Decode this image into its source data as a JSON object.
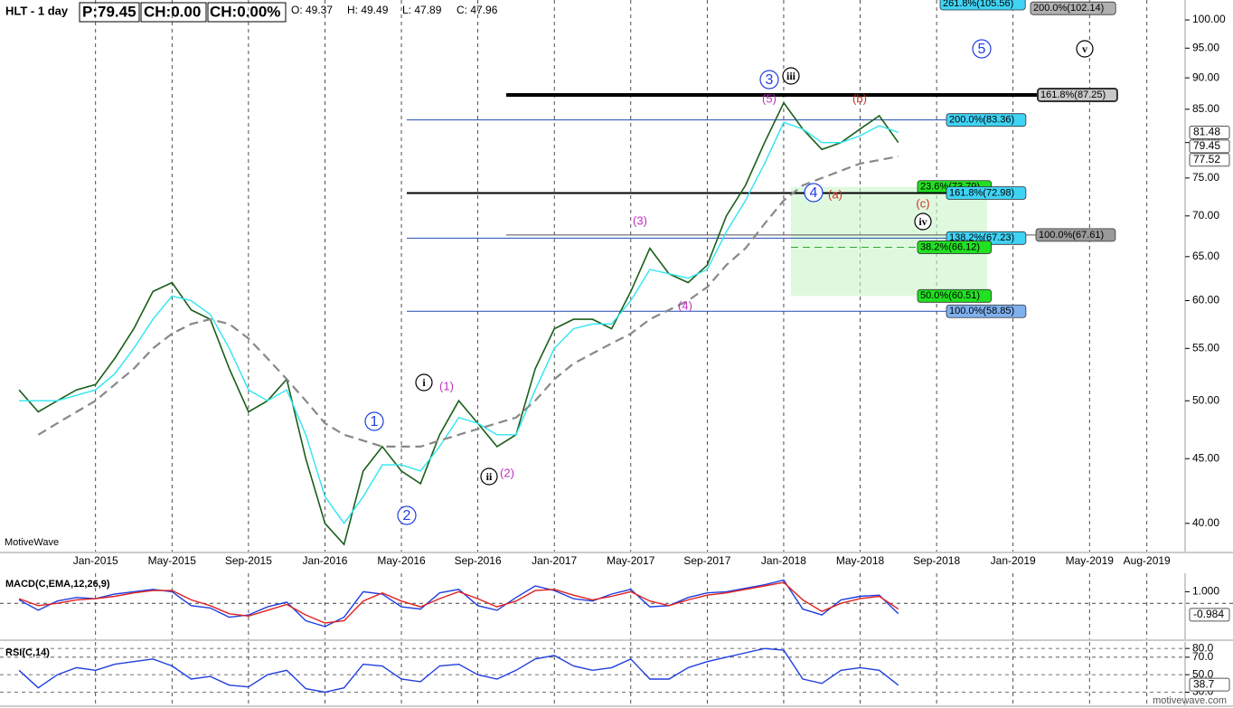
{
  "header": {
    "symbol": "HLT - 1 day",
    "price": "P:79.45",
    "change": "CH:0.00",
    "change_pct": "CH:0.00%",
    "open": "O: 49.37",
    "high": "H: 49.49",
    "low": "L: 47.89",
    "close": "C: 47.96"
  },
  "watermark": "MotiveWave",
  "footer": "motivewave.com",
  "chart_data": [
    {
      "type": "line",
      "log": true,
      "x": [
        "2014-09",
        "2014-10",
        "2014-11",
        "2014-12",
        "2015-01",
        "2015-02",
        "2015-03",
        "2015-04",
        "2015-05",
        "2015-06",
        "2015-07",
        "2015-08",
        "2015-09",
        "2015-10",
        "2015-11",
        "2015-12",
        "2016-01",
        "2016-02",
        "2016-03",
        "2016-04",
        "2016-05",
        "2016-06",
        "2016-07",
        "2016-08",
        "2016-09",
        "2016-10",
        "2016-11",
        "2016-12",
        "2017-01",
        "2017-02",
        "2017-03",
        "2017-04",
        "2017-05",
        "2017-06",
        "2017-07",
        "2017-08",
        "2017-09",
        "2017-10",
        "2017-11",
        "2017-12",
        "2018-01",
        "2018-02",
        "2018-03",
        "2018-04",
        "2018-05",
        "2018-06",
        "2018-07"
      ],
      "series": [
        {
          "color": "#1a5e1a",
          "values": [
            51,
            49,
            50,
            51,
            51.5,
            54,
            57,
            61,
            62,
            59,
            58,
            53,
            49,
            50,
            52,
            45,
            40,
            38.5,
            44,
            46,
            44,
            43,
            47,
            50,
            48,
            46,
            47,
            53,
            57,
            58,
            58,
            57,
            61,
            66,
            63,
            62,
            64,
            70,
            74,
            80,
            86,
            82,
            79,
            80,
            82,
            84,
            80
          ]
        },
        {
          "color": "#2ee6f0",
          "values": [
            50,
            50,
            50,
            50.5,
            51,
            52.5,
            55,
            58,
            60.5,
            60,
            58.5,
            55,
            51,
            50,
            51,
            47,
            42,
            40,
            42,
            44.5,
            44.5,
            44,
            46,
            48.5,
            48,
            47,
            47,
            51,
            55,
            57,
            57.5,
            57.5,
            60,
            63.5,
            63,
            62.5,
            63.5,
            68,
            72,
            77,
            83,
            82,
            80,
            80,
            81,
            82.5,
            81.5
          ]
        },
        {
          "color": "#888888",
          "dashed": true,
          "values": [
            null,
            47,
            48,
            49,
            50,
            51.5,
            53,
            55,
            56.5,
            57.5,
            58,
            57.5,
            56,
            54,
            52,
            50,
            48,
            47,
            46.5,
            46,
            46,
            46,
            46.5,
            47,
            47.5,
            48,
            48.5,
            50,
            52,
            53.5,
            54.5,
            55.5,
            56.5,
            58,
            59,
            60,
            61.5,
            64,
            66,
            69,
            72,
            74,
            75,
            76,
            77,
            77.5,
            78
          ]
        }
      ],
      "xlim": [
        "2014-08",
        "2019-10"
      ],
      "xticks": [
        {
          "value": "2015-01",
          "label": "Jan-2015"
        },
        {
          "value": "2015-05",
          "label": "May-2015"
        },
        {
          "value": "2015-09",
          "label": "Sep-2015"
        },
        {
          "value": "2016-01",
          "label": "Jan-2016"
        },
        {
          "value": "2016-05",
          "label": "May-2016"
        },
        {
          "value": "2016-09",
          "label": "Sep-2016"
        },
        {
          "value": "2017-01",
          "label": "Jan-2017"
        },
        {
          "value": "2017-05",
          "label": "May-2017"
        },
        {
          "value": "2017-09",
          "label": "Sep-2017"
        },
        {
          "value": "2018-01",
          "label": "Jan-2018"
        },
        {
          "value": "2018-05",
          "label": "May-2018"
        },
        {
          "value": "2018-09",
          "label": "Sep-2018"
        },
        {
          "value": "2019-01",
          "label": "Jan-2019"
        },
        {
          "value": "2019-05",
          "label": "May-2019"
        },
        {
          "value": "2019-08",
          "label": "Aug-2019"
        }
      ],
      "ylim": [
        38,
        103.7
      ],
      "yticks": [
        {
          "value": 40,
          "label": "40.00"
        },
        {
          "value": 45,
          "label": "45.00"
        },
        {
          "value": 50,
          "label": "50.00"
        },
        {
          "value": 55,
          "label": "55.00"
        },
        {
          "value": 60,
          "label": "60.00"
        },
        {
          "value": 65,
          "label": "65.00"
        },
        {
          "value": 70,
          "label": "70.00"
        },
        {
          "value": 75,
          "label": "75.00"
        },
        {
          "value": 80,
          "label": "80.00"
        },
        {
          "value": 85,
          "label": "85.00"
        },
        {
          "value": 90,
          "label": "90.00"
        },
        {
          "value": 95,
          "label": "95.00"
        },
        {
          "value": 100,
          "label": "100.00"
        }
      ],
      "price_markers": [
        {
          "value": 81.48,
          "label": "81.48"
        },
        {
          "value": 79.45,
          "label": "79.45"
        },
        {
          "value": 77.52,
          "label": "77.52"
        }
      ],
      "levels": [
        {
          "value": 105.56,
          "label": "261.8%(105.56)",
          "color": "#3fd3f5"
        },
        {
          "value": 102.14,
          "label": "200.0%(102.14)",
          "color": "#b0b0b0"
        },
        {
          "value": 87.25,
          "label": "161.8%(87.25)",
          "color": "#c8c8c8",
          "line_color": "#000000"
        },
        {
          "value": 83.36,
          "label": "200.0%(83.36)",
          "color": "#3fd3f5",
          "line_color": "#1f4fb5"
        },
        {
          "value": 73.79,
          "label": "23.6%(73.79)",
          "color": "#22e022"
        },
        {
          "value": 72.98,
          "label": "161.8%(72.98)",
          "color": "#3fd3f5",
          "line_color": "#000000"
        },
        {
          "value": 67.61,
          "label": "100.0%(67.61)",
          "color": "#9a9a9a",
          "line_color": "#555555"
        },
        {
          "value": 67.23,
          "label": "138.2%(67.23)",
          "color": "#3fd3f5",
          "line_color": "#1f4fb5"
        },
        {
          "value": 66.12,
          "label": "38.2%(66.12)",
          "color": "#22e022",
          "line_color": "#33aa33"
        },
        {
          "value": 60.51,
          "label": "50.0%(60.51)",
          "color": "#22e022"
        },
        {
          "value": 58.85,
          "label": "100.0%(58.85)",
          "color": "#7fb0ee",
          "line_color": "#1f4fb5"
        }
      ],
      "annotations": [
        {
          "text": "1",
          "color": "#1f3fe0"
        },
        {
          "text": "2",
          "color": "#1f3fe0"
        },
        {
          "text": "3",
          "color": "#1f3fe0"
        },
        {
          "text": "4",
          "color": "#1f3fe0"
        },
        {
          "text": "5",
          "color": "#1f3fe0"
        },
        {
          "text": "i",
          "color": "#000000"
        },
        {
          "text": "ii",
          "color": "#000000"
        },
        {
          "text": "iii",
          "color": "#000000"
        },
        {
          "text": "iv",
          "color": "#000000"
        },
        {
          "text": "v",
          "color": "#000000"
        },
        {
          "text": "(1)",
          "color": "#c030c0"
        },
        {
          "text": "(2)",
          "color": "#c030c0"
        },
        {
          "text": "(3)",
          "color": "#c030c0"
        },
        {
          "text": "(4)",
          "color": "#c030c0"
        },
        {
          "text": "(5)",
          "color": "#c030c0"
        },
        {
          "text": "(a)",
          "color": "#d03020"
        },
        {
          "text": "(b)",
          "color": "#d03020"
        },
        {
          "text": "(c)",
          "color": "#d03020"
        }
      ]
    },
    {
      "type": "line",
      "title": "MACD(C,EMA,12,26,9)",
      "x": [
        "2014-09",
        "2014-10",
        "2014-11",
        "2014-12",
        "2015-01",
        "2015-02",
        "2015-03",
        "2015-04",
        "2015-05",
        "2015-06",
        "2015-07",
        "2015-08",
        "2015-09",
        "2015-10",
        "2015-11",
        "2015-12",
        "2016-01",
        "2016-02",
        "2016-03",
        "2016-04",
        "2016-05",
        "2016-06",
        "2016-07",
        "2016-08",
        "2016-09",
        "2016-10",
        "2016-11",
        "2016-12",
        "2017-01",
        "2017-02",
        "2017-03",
        "2017-04",
        "2017-05",
        "2017-06",
        "2017-07",
        "2017-08",
        "2017-09",
        "2017-10",
        "2017-11",
        "2017-12",
        "2018-01",
        "2018-02",
        "2018-03",
        "2018-04",
        "2018-05",
        "2018-06",
        "2018-07"
      ],
      "series": [
        {
          "color": "#1f3fe0",
          "values": [
            0.3,
            -0.6,
            0.2,
            0.5,
            0.4,
            0.8,
            1.0,
            1.2,
            1.0,
            -0.2,
            -0.4,
            -1.2,
            -1.0,
            -0.3,
            0.1,
            -1.5,
            -2.0,
            -1.2,
            1.0,
            0.8,
            -0.3,
            -0.5,
            0.9,
            1.2,
            -0.2,
            -0.6,
            0.5,
            1.5,
            1.1,
            0.4,
            0.2,
            0.8,
            1.2,
            -0.3,
            -0.2,
            0.5,
            0.9,
            1.0,
            1.3,
            1.6,
            2.0,
            -0.5,
            -1.0,
            0.3,
            0.6,
            0.7,
            -0.9
          ]
        },
        {
          "color": "#e02020",
          "values": [
            0.4,
            -0.2,
            0.0,
            0.3,
            0.4,
            0.6,
            0.9,
            1.1,
            1.1,
            0.3,
            -0.2,
            -0.9,
            -1.1,
            -0.6,
            -0.1,
            -1.0,
            -1.7,
            -1.5,
            0.2,
            0.9,
            0.2,
            -0.3,
            0.4,
            1.0,
            0.4,
            -0.3,
            0.2,
            1.1,
            1.2,
            0.7,
            0.3,
            0.6,
            1.0,
            0.2,
            -0.2,
            0.3,
            0.7,
            0.9,
            1.2,
            1.5,
            1.8,
            0.3,
            -0.7,
            0.0,
            0.4,
            0.6,
            -0.5
          ]
        }
      ],
      "xlim": [
        "2014-08",
        "2019-10"
      ],
      "ylim": [
        -3.1,
        2.59
      ],
      "yticks": [
        {
          "value": 1,
          "label": "1.000"
        }
      ],
      "value_markers": [
        {
          "value": -0.984,
          "label": "-0.984"
        }
      ]
    },
    {
      "type": "line",
      "title": "RSI(C,14)",
      "x": [
        "2014-09",
        "2014-10",
        "2014-11",
        "2014-12",
        "2015-01",
        "2015-02",
        "2015-03",
        "2015-04",
        "2015-05",
        "2015-06",
        "2015-07",
        "2015-08",
        "2015-09",
        "2015-10",
        "2015-11",
        "2015-12",
        "2016-01",
        "2016-02",
        "2016-03",
        "2016-04",
        "2016-05",
        "2016-06",
        "2016-07",
        "2016-08",
        "2016-09",
        "2016-10",
        "2016-11",
        "2016-12",
        "2017-01",
        "2017-02",
        "2017-03",
        "2017-04",
        "2017-05",
        "2017-06",
        "2017-07",
        "2017-08",
        "2017-09",
        "2017-10",
        "2017-11",
        "2017-12",
        "2018-01",
        "2018-02",
        "2018-03",
        "2018-04",
        "2018-05",
        "2018-06",
        "2018-07"
      ],
      "series": [
        {
          "color": "#1f3fe0",
          "values": [
            55,
            35,
            50,
            58,
            55,
            62,
            65,
            68,
            60,
            45,
            48,
            38,
            36,
            50,
            55,
            34,
            30,
            35,
            62,
            60,
            45,
            42,
            60,
            62,
            50,
            45,
            55,
            68,
            72,
            60,
            55,
            58,
            68,
            45,
            45,
            58,
            65,
            70,
            75,
            80,
            78,
            45,
            40,
            55,
            58,
            55,
            38
          ]
        }
      ],
      "xlim": [
        "2014-08",
        "2019-10"
      ],
      "ylim": [
        15,
        87.4
      ],
      "yticks": [
        {
          "value": 30,
          "label": "30.0"
        },
        {
          "value": 50,
          "label": "50.0"
        },
        {
          "value": 70,
          "label": "70.0"
        },
        {
          "value": 80,
          "label": "80.0"
        }
      ],
      "value_markers": [
        {
          "value": 38.7,
          "label": "38.7"
        }
      ]
    }
  ]
}
